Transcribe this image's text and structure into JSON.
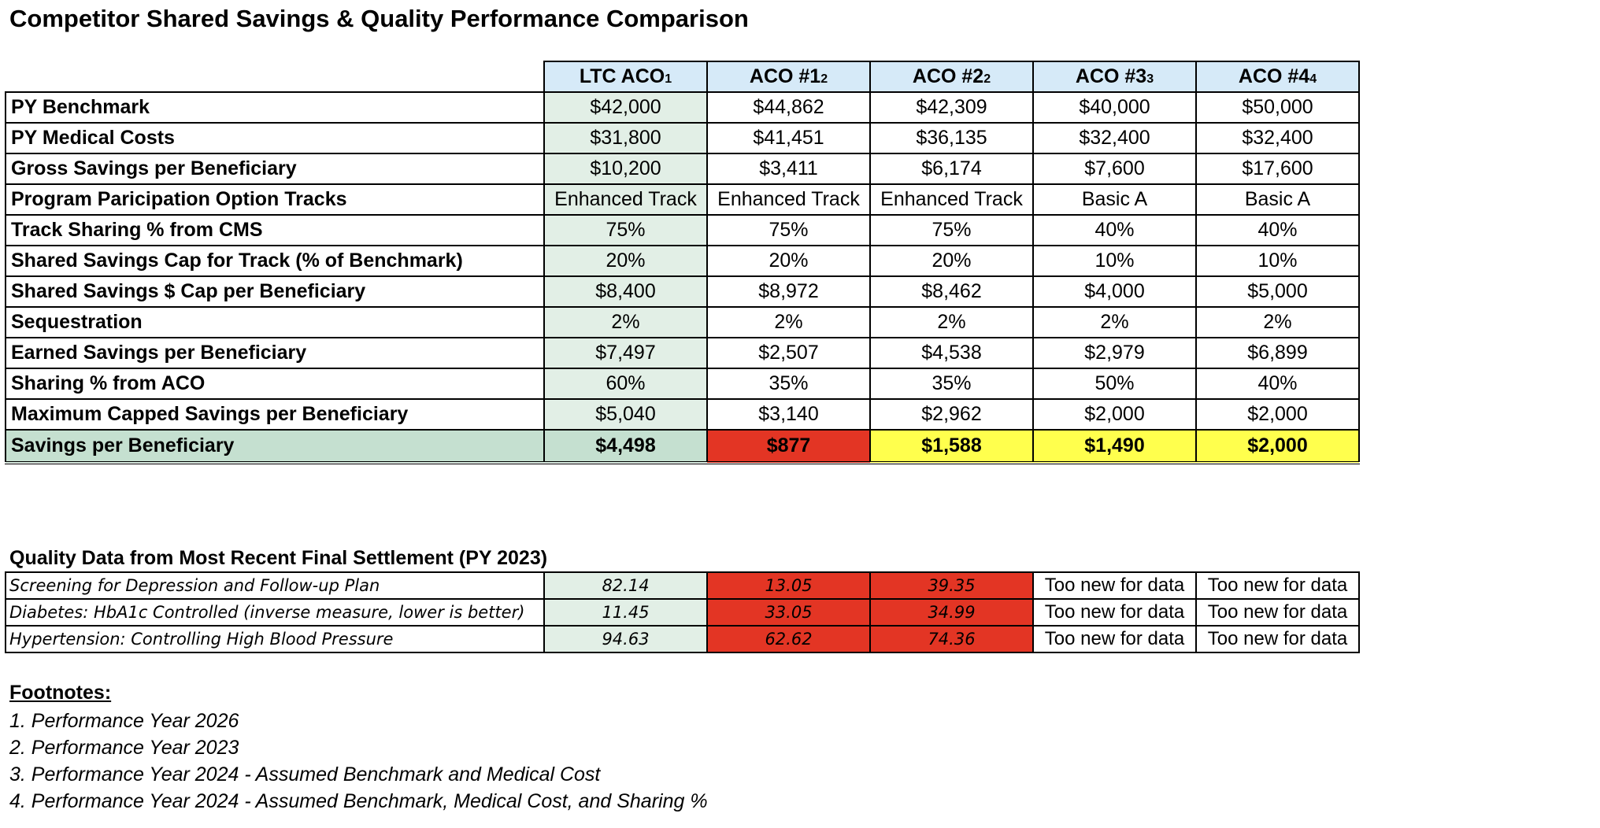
{
  "title": "Competitor Shared Savings & Quality Performance Comparison",
  "columns": [
    {
      "name": "LTC ACO",
      "footnote": "1"
    },
    {
      "name": "ACO #1",
      "footnote": "2"
    },
    {
      "name": "ACO #2",
      "footnote": "2"
    },
    {
      "name": "ACO #3",
      "footnote": "3"
    },
    {
      "name": "ACO #4",
      "footnote": "4"
    }
  ],
  "rows": [
    {
      "label": "PY Benchmark",
      "values": [
        "$42,000",
        "$44,862",
        "$42,309",
        "$40,000",
        "$50,000"
      ]
    },
    {
      "label": "PY Medical Costs",
      "values": [
        "$31,800",
        "$41,451",
        "$36,135",
        "$32,400",
        "$32,400"
      ]
    },
    {
      "label": "Gross Savings per Beneficiary",
      "values": [
        "$10,200",
        "$3,411",
        "$6,174",
        "$7,600",
        "$17,600"
      ]
    },
    {
      "label": "Program Paricipation Option Tracks",
      "values": [
        "Enhanced Track",
        "Enhanced Track",
        "Enhanced Track",
        "Basic A",
        "Basic A"
      ]
    },
    {
      "label": "Track Sharing % from CMS",
      "values": [
        "75%",
        "75%",
        "75%",
        "40%",
        "40%"
      ]
    },
    {
      "label": "Shared Savings Cap for Track (% of Benchmark)",
      "values": [
        "20%",
        "20%",
        "20%",
        "10%",
        "10%"
      ]
    },
    {
      "label": "Shared Savings $ Cap per Beneficiary",
      "values": [
        "$8,400",
        "$8,972",
        "$8,462",
        "$4,000",
        "$5,000"
      ]
    },
    {
      "label": "Sequestration",
      "values": [
        "2%",
        "2%",
        "2%",
        "2%",
        "2%"
      ]
    },
    {
      "label": "Earned Savings per Beneficiary",
      "values": [
        "$7,497",
        "$2,507",
        "$4,538",
        "$2,979",
        "$6,899"
      ]
    },
    {
      "label": "Sharing % from ACO",
      "values": [
        "60%",
        "35%",
        "35%",
        "50%",
        "40%"
      ]
    },
    {
      "label": "Maximum Capped Savings per Beneficiary",
      "values": [
        "$5,040",
        "$3,140",
        "$2,962",
        "$2,000",
        "$2,000"
      ]
    }
  ],
  "total_row": {
    "label": "Savings per Beneficiary",
    "values": [
      "$4,498",
      "$877",
      "$1,588",
      "$1,490",
      "$2,000"
    ],
    "highlight": [
      "green",
      "red",
      "yellow",
      "yellow",
      "yellow"
    ]
  },
  "quality": {
    "title": "Quality Data from Most Recent Final Settlement (PY 2023)",
    "rows": [
      {
        "label": "Screening for Depression and Follow-up Plan",
        "values": [
          "82.14",
          "13.05",
          "39.35",
          "Too new for data",
          "Too new for data"
        ]
      },
      {
        "label": "Diabetes: HbA1c Controlled (inverse measure, lower is better)",
        "values": [
          "11.45",
          "33.05",
          "34.99",
          "Too new for data",
          "Too new for data"
        ]
      },
      {
        "label": "Hypertension: Controlling High Blood Pressure",
        "values": [
          "94.63",
          "62.62",
          "74.36",
          "Too new for data",
          "Too new for data"
        ]
      }
    ]
  },
  "footnotes": {
    "title": "Footnotes:",
    "items": [
      "1. Performance Year 2026",
      "2. Performance Year 2023",
      "3. Performance Year 2024 - Assumed Benchmark and Medical Cost",
      "4. Performance Year 2024 - Assumed Benchmark, Medical Cost, and Sharing %"
    ]
  },
  "colors": {
    "header_bg": "#d6eaf8",
    "ltc_bg": "#e2efe6",
    "red": "#e33524",
    "yellow": "#ffff4d",
    "total_green": "#c5e0d0"
  }
}
